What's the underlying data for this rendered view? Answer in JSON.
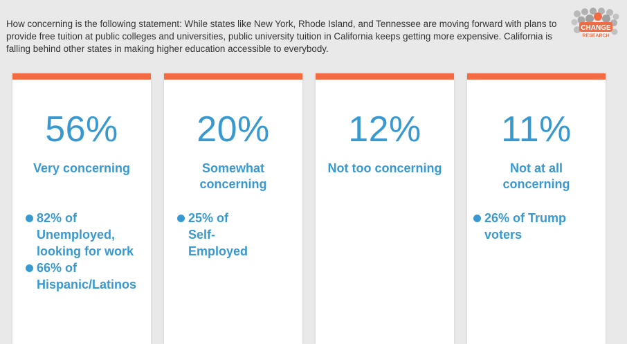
{
  "question": "How concerning is the following statement: While states like New York, Rhode Island, and Tennessee are moving forward with plans to provide free tuition at public colleges and universities, public university tuition in California keeps getting more expensive. California is falling behind other states in making higher education accessible to everybody.",
  "logo": {
    "line1": "CHANGE",
    "line2": "RESEARCH"
  },
  "colors": {
    "accent_bar": "#f26b43",
    "text_blue": "#3899d1",
    "background": "#e9e9e9"
  },
  "cards": [
    {
      "percent": "56%",
      "label": "Very concerning",
      "notes": [
        "82% of Unemployed, looking for work",
        "66% of Hispanic/Latinos"
      ]
    },
    {
      "percent": "20%",
      "label": "Somewhat concerning",
      "notes": [
        "25% of Self-Employed"
      ]
    },
    {
      "percent": "12%",
      "label": "Not too concerning",
      "notes": []
    },
    {
      "percent": "11%",
      "label": "Not at all concerning",
      "notes": [
        "26% of Trump voters"
      ]
    }
  ]
}
